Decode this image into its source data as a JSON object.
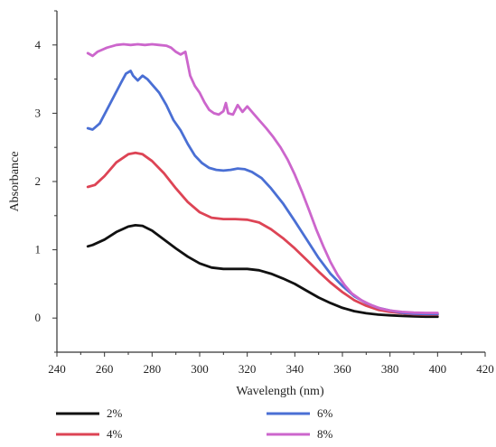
{
  "chart_data": {
    "type": "line",
    "xlabel": "Wavelength (nm)",
    "ylabel": "Absorbance",
    "xlim": [
      240,
      420
    ],
    "ylim": [
      -0.5,
      4.5
    ],
    "xticks": [
      240,
      260,
      280,
      300,
      320,
      340,
      360,
      380,
      400,
      420
    ],
    "yticks": [
      0,
      1,
      2,
      3,
      4
    ],
    "grid": false,
    "legend_position": "bottom",
    "series": [
      {
        "name": "2%",
        "color": "#111111",
        "points": [
          [
            253,
            1.05
          ],
          [
            255,
            1.07
          ],
          [
            260,
            1.15
          ],
          [
            265,
            1.26
          ],
          [
            270,
            1.34
          ],
          [
            273,
            1.36
          ],
          [
            276,
            1.35
          ],
          [
            280,
            1.28
          ],
          [
            285,
            1.15
          ],
          [
            290,
            1.02
          ],
          [
            295,
            0.9
          ],
          [
            300,
            0.8
          ],
          [
            305,
            0.74
          ],
          [
            310,
            0.72
          ],
          [
            315,
            0.72
          ],
          [
            320,
            0.72
          ],
          [
            325,
            0.7
          ],
          [
            330,
            0.65
          ],
          [
            335,
            0.58
          ],
          [
            340,
            0.5
          ],
          [
            345,
            0.4
          ],
          [
            350,
            0.3
          ],
          [
            355,
            0.22
          ],
          [
            360,
            0.15
          ],
          [
            365,
            0.1
          ],
          [
            370,
            0.07
          ],
          [
            375,
            0.05
          ],
          [
            380,
            0.04
          ],
          [
            385,
            0.03
          ],
          [
            390,
            0.025
          ],
          [
            395,
            0.02
          ],
          [
            400,
            0.02
          ]
        ]
      },
      {
        "name": "4%",
        "color": "#dd4455",
        "points": [
          [
            253,
            1.92
          ],
          [
            256,
            1.95
          ],
          [
            260,
            2.08
          ],
          [
            265,
            2.28
          ],
          [
            270,
            2.4
          ],
          [
            273,
            2.42
          ],
          [
            276,
            2.4
          ],
          [
            280,
            2.3
          ],
          [
            285,
            2.12
          ],
          [
            290,
            1.9
          ],
          [
            295,
            1.7
          ],
          [
            300,
            1.55
          ],
          [
            305,
            1.47
          ],
          [
            310,
            1.45
          ],
          [
            315,
            1.45
          ],
          [
            320,
            1.44
          ],
          [
            325,
            1.4
          ],
          [
            330,
            1.3
          ],
          [
            335,
            1.17
          ],
          [
            340,
            1.02
          ],
          [
            345,
            0.85
          ],
          [
            350,
            0.68
          ],
          [
            355,
            0.52
          ],
          [
            360,
            0.38
          ],
          [
            365,
            0.26
          ],
          [
            370,
            0.18
          ],
          [
            375,
            0.12
          ],
          [
            380,
            0.09
          ],
          [
            385,
            0.07
          ],
          [
            390,
            0.055
          ],
          [
            395,
            0.05
          ],
          [
            400,
            0.05
          ]
        ]
      },
      {
        "name": "6%",
        "color": "#4a6fd4",
        "points": [
          [
            253,
            2.78
          ],
          [
            255,
            2.76
          ],
          [
            258,
            2.85
          ],
          [
            261,
            3.05
          ],
          [
            264,
            3.25
          ],
          [
            267,
            3.45
          ],
          [
            269,
            3.58
          ],
          [
            271,
            3.62
          ],
          [
            272,
            3.55
          ],
          [
            274,
            3.48
          ],
          [
            276,
            3.55
          ],
          [
            278,
            3.5
          ],
          [
            280,
            3.42
          ],
          [
            283,
            3.3
          ],
          [
            286,
            3.12
          ],
          [
            289,
            2.9
          ],
          [
            292,
            2.75
          ],
          [
            295,
            2.55
          ],
          [
            298,
            2.38
          ],
          [
            301,
            2.27
          ],
          [
            304,
            2.2
          ],
          [
            307,
            2.17
          ],
          [
            310,
            2.16
          ],
          [
            313,
            2.17
          ],
          [
            316,
            2.19
          ],
          [
            319,
            2.18
          ],
          [
            322,
            2.14
          ],
          [
            326,
            2.05
          ],
          [
            330,
            1.9
          ],
          [
            335,
            1.68
          ],
          [
            340,
            1.42
          ],
          [
            345,
            1.15
          ],
          [
            350,
            0.88
          ],
          [
            355,
            0.65
          ],
          [
            360,
            0.47
          ],
          [
            365,
            0.32
          ],
          [
            370,
            0.22
          ],
          [
            375,
            0.15
          ],
          [
            380,
            0.11
          ],
          [
            385,
            0.08
          ],
          [
            390,
            0.065
          ],
          [
            395,
            0.06
          ],
          [
            400,
            0.06
          ]
        ]
      },
      {
        "name": "8%",
        "color": "#cc66cc",
        "points": [
          [
            253,
            3.88
          ],
          [
            255,
            3.84
          ],
          [
            257,
            3.9
          ],
          [
            259,
            3.93
          ],
          [
            261,
            3.96
          ],
          [
            263,
            3.98
          ],
          [
            265,
            4.0
          ],
          [
            268,
            4.01
          ],
          [
            271,
            4.0
          ],
          [
            274,
            4.01
          ],
          [
            277,
            4.0
          ],
          [
            280,
            4.01
          ],
          [
            283,
            4.0
          ],
          [
            286,
            3.99
          ],
          [
            288,
            3.96
          ],
          [
            290,
            3.9
          ],
          [
            292,
            3.86
          ],
          [
            294,
            3.9
          ],
          [
            296,
            3.55
          ],
          [
            298,
            3.4
          ],
          [
            300,
            3.3
          ],
          [
            302,
            3.16
          ],
          [
            304,
            3.05
          ],
          [
            306,
            3.0
          ],
          [
            308,
            2.98
          ],
          [
            310,
            3.03
          ],
          [
            311,
            3.15
          ],
          [
            312,
            3.0
          ],
          [
            314,
            2.98
          ],
          [
            316,
            3.12
          ],
          [
            318,
            3.02
          ],
          [
            320,
            3.1
          ],
          [
            322,
            3.02
          ],
          [
            325,
            2.9
          ],
          [
            328,
            2.78
          ],
          [
            331,
            2.65
          ],
          [
            334,
            2.5
          ],
          [
            337,
            2.32
          ],
          [
            340,
            2.1
          ],
          [
            343,
            1.85
          ],
          [
            346,
            1.58
          ],
          [
            349,
            1.3
          ],
          [
            352,
            1.05
          ],
          [
            355,
            0.82
          ],
          [
            358,
            0.63
          ],
          [
            361,
            0.48
          ],
          [
            364,
            0.36
          ],
          [
            368,
            0.26
          ],
          [
            372,
            0.19
          ],
          [
            376,
            0.14
          ],
          [
            380,
            0.11
          ],
          [
            385,
            0.09
          ],
          [
            390,
            0.08
          ],
          [
            395,
            0.075
          ],
          [
            400,
            0.075
          ]
        ]
      }
    ]
  }
}
